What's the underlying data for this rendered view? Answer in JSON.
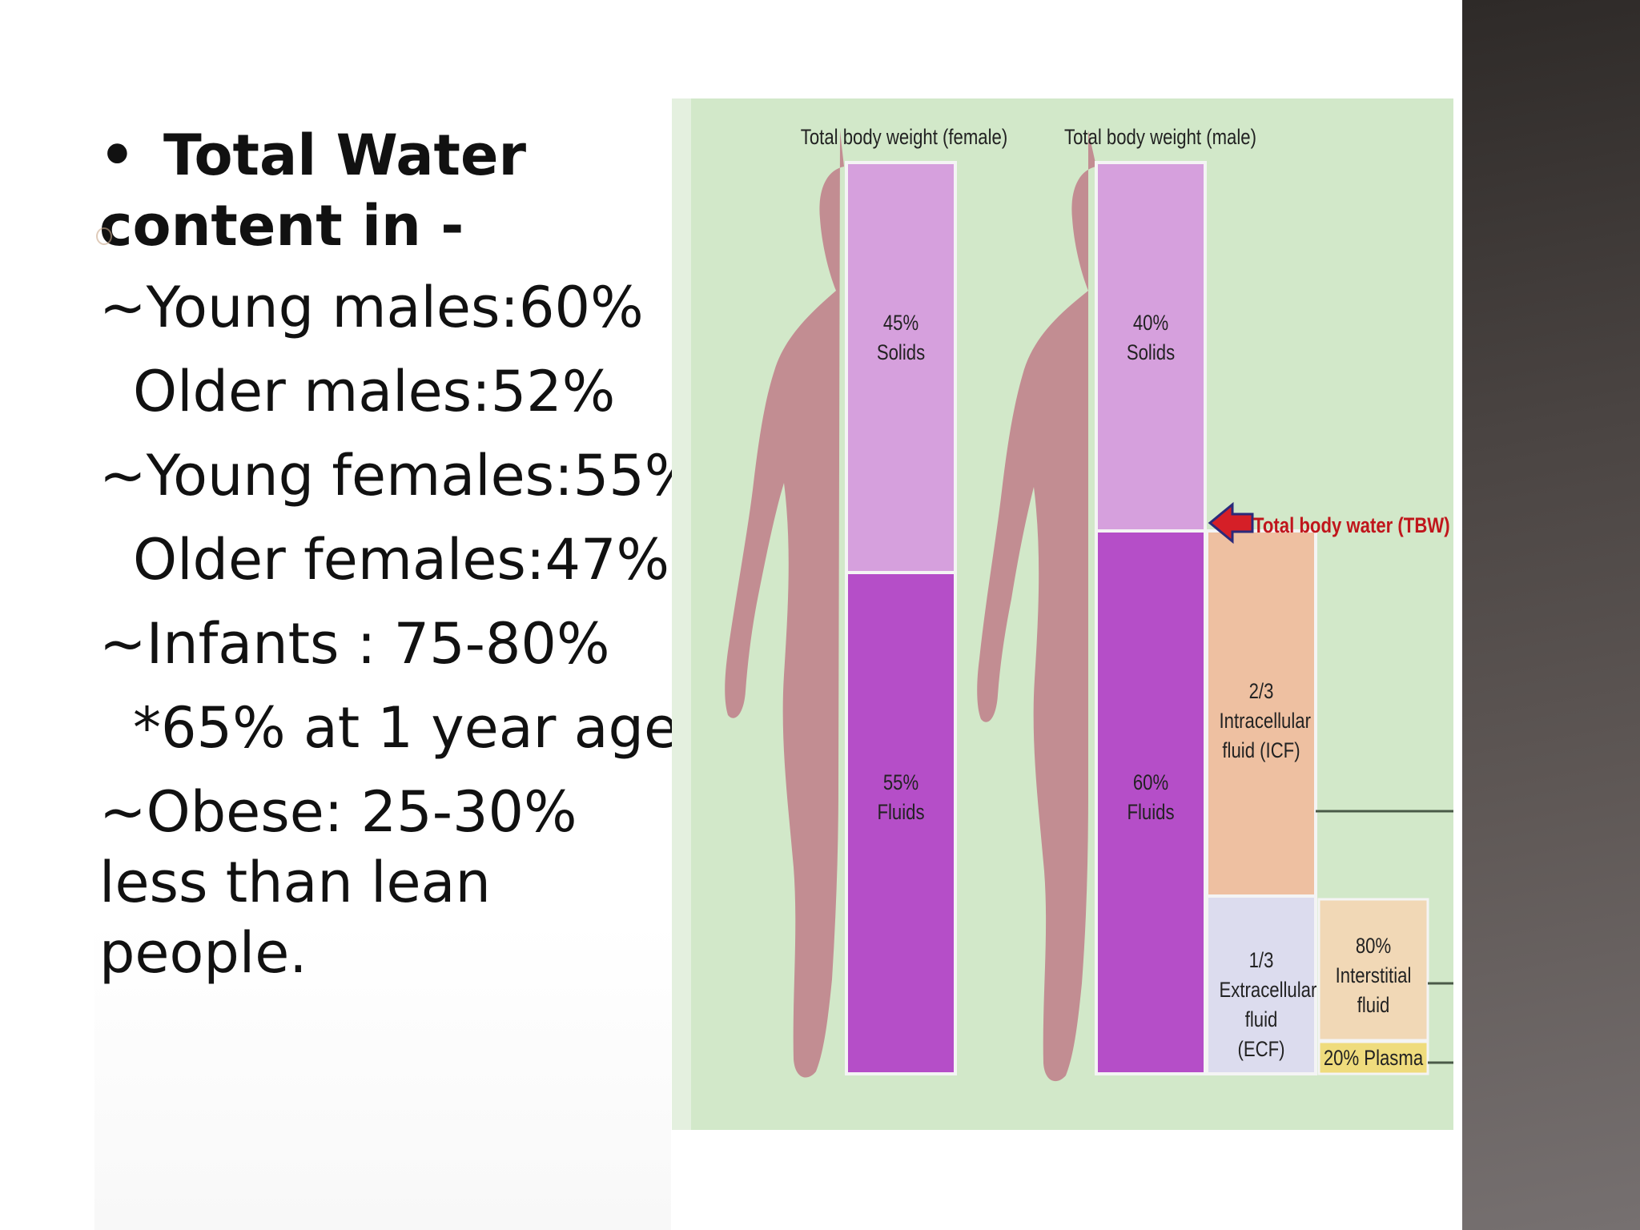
{
  "slide": {
    "heading_bullet": "•",
    "heading": "Total Water content in -",
    "lines": [
      "~Young males:60%",
      "Older males:52%",
      "~Young females:55%",
      "Older females:47%",
      "~Infants : 75-80%",
      "*65% at 1 year age."
    ],
    "last_item": "~Obese: 25-30% less than lean people."
  },
  "diagram": {
    "female_title": "Total body weight (female)",
    "male_title": "Total body weight (male)",
    "female_solids": "45% Solids",
    "female_fluids": "55% Fluids",
    "male_solids": "40% Solids",
    "male_fluids": "60% Fluids",
    "tbw_label": "Total body water (TBW)",
    "icf_label": "2/3 Intracellular fluid (ICF)",
    "ecf_label": "1/3 Extracellular fluid (ECF)",
    "interstitial_label": "80% Interstitial fluid",
    "plasma_label": "20% Plasma",
    "colors": {
      "background": "#d2e8c9",
      "silhouette": "#c28d92",
      "solids": "#d6a0dd",
      "fluids": "#b54ec8",
      "icf": "#eec0a1",
      "ecf": "#dcdcee",
      "interstitial": "#f1d8b6",
      "plasma": "#efdc7d",
      "arrow": "#d51f27"
    }
  }
}
